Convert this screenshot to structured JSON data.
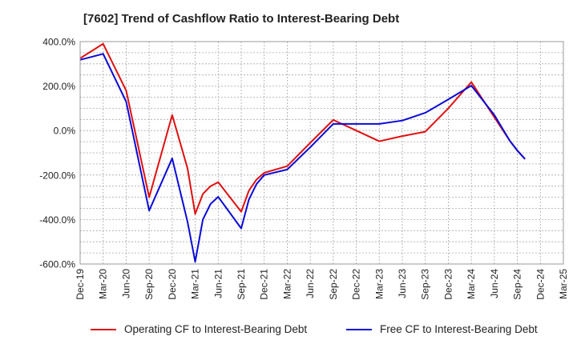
{
  "chart_data": {
    "type": "line",
    "title": "[7602]  Trend of Cashflow Ratio to Interest-Bearing Debt",
    "xlabel": "",
    "ylabel": "",
    "ylim": [
      -600,
      400
    ],
    "y_ticks": [
      400,
      200,
      0,
      -200,
      -400,
      -600
    ],
    "y_tick_labels": [
      "400.0%",
      "200.0%",
      "0.0%",
      "-200.0%",
      "-400.0%",
      "-600.0%"
    ],
    "x_tick_labels": [
      "Dec-19",
      "Mar-20",
      "Jun-20",
      "Sep-20",
      "Dec-20",
      "Mar-21",
      "Jun-21",
      "Sep-21",
      "Dec-21",
      "Mar-22",
      "Jun-22",
      "Sep-22",
      "Dec-22",
      "Mar-23",
      "Jun-23",
      "Sep-23",
      "Dec-23",
      "Mar-24",
      "Jun-24",
      "Sep-24",
      "Dec-24",
      "Mar-25"
    ],
    "x_range": [
      "2019-12",
      "2025-03"
    ],
    "grid": true,
    "legend_position": "bottom",
    "series": [
      {
        "name": "Operating CF to Interest-Bearing Debt",
        "color": "#e01010",
        "points": [
          [
            "2019-12",
            325
          ],
          [
            "2020-03",
            390
          ],
          [
            "2020-06",
            180
          ],
          [
            "2020-09",
            -300
          ],
          [
            "2020-12",
            70
          ],
          [
            "2021-02",
            -170
          ],
          [
            "2021-03",
            -375
          ],
          [
            "2021-04",
            -285
          ],
          [
            "2021-05",
            -250
          ],
          [
            "2021-06",
            -232
          ],
          [
            "2021-09",
            -365
          ],
          [
            "2021-10",
            -270
          ],
          [
            "2021-11",
            -220
          ],
          [
            "2021-12",
            -190
          ],
          [
            "2022-03",
            -160
          ],
          [
            "2022-06",
            -55
          ],
          [
            "2022-09",
            48
          ],
          [
            "2022-12",
            0
          ],
          [
            "2023-03",
            -48
          ],
          [
            "2023-06",
            -25
          ],
          [
            "2023-09",
            -5
          ],
          [
            "2023-12",
            100
          ],
          [
            "2024-03",
            218
          ],
          [
            "2024-06",
            60
          ],
          [
            "2024-08",
            -45
          ],
          [
            "2024-09",
            -90
          ],
          [
            "2024-10",
            -128
          ]
        ]
      },
      {
        "name": "Free CF to Interest-Bearing Debt",
        "color": "#0a0ad8",
        "points": [
          [
            "2019-12",
            318
          ],
          [
            "2020-03",
            345
          ],
          [
            "2020-06",
            130
          ],
          [
            "2020-09",
            -360
          ],
          [
            "2020-12",
            -125
          ],
          [
            "2021-02",
            -410
          ],
          [
            "2021-03",
            -590
          ],
          [
            "2021-04",
            -400
          ],
          [
            "2021-05",
            -330
          ],
          [
            "2021-06",
            -298
          ],
          [
            "2021-09",
            -440
          ],
          [
            "2021-10",
            -310
          ],
          [
            "2021-11",
            -240
          ],
          [
            "2021-12",
            -200
          ],
          [
            "2022-03",
            -175
          ],
          [
            "2022-06",
            -75
          ],
          [
            "2022-09",
            30
          ],
          [
            "2022-12",
            30
          ],
          [
            "2023-03",
            30
          ],
          [
            "2023-06",
            45
          ],
          [
            "2023-09",
            80
          ],
          [
            "2023-12",
            140
          ],
          [
            "2024-03",
            202
          ],
          [
            "2024-06",
            70
          ],
          [
            "2024-08",
            -45
          ],
          [
            "2024-09",
            -90
          ],
          [
            "2024-10",
            -128
          ]
        ]
      }
    ]
  }
}
